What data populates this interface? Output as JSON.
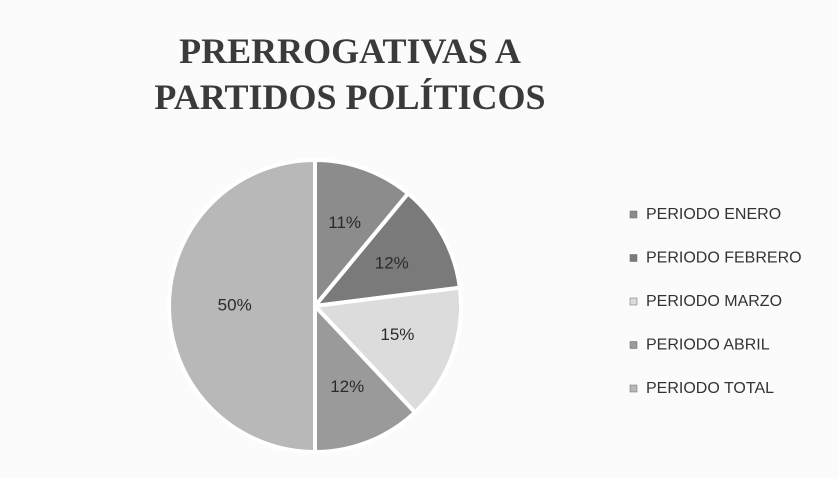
{
  "chart_data": {
    "type": "pie",
    "title": "PRERROGATIVAS A PARTIDOS POLÍTICOS",
    "categories": [
      "PERIODO ENERO",
      "PERIODO FEBRERO",
      "PERIODO MARZO",
      "PERIODO ABRIL",
      "PERIODO TOTAL"
    ],
    "values": [
      11,
      12,
      15,
      12,
      50
    ],
    "value_labels": [
      "11%",
      "12%",
      "15%",
      "12%",
      "50%"
    ],
    "colors": [
      "#8c8c8c",
      "#7a7a7a",
      "#dcdcdc",
      "#9a9a9a",
      "#b8b8b8"
    ],
    "legend": "right"
  }
}
